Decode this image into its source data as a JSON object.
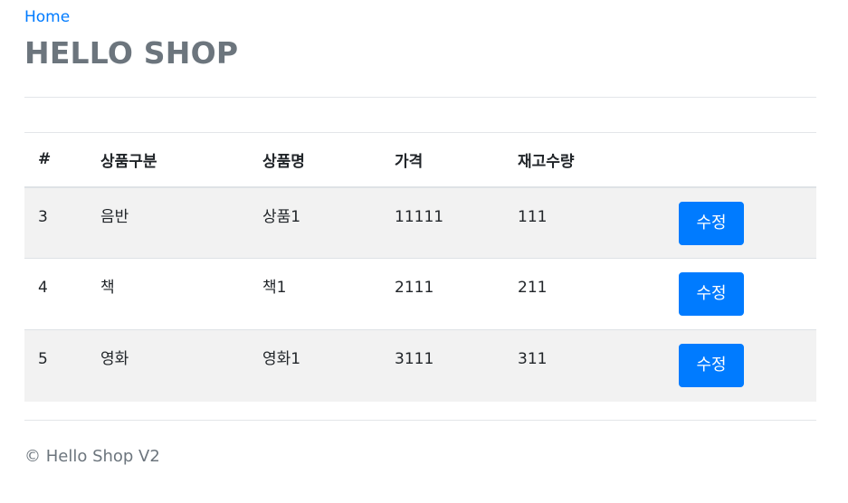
{
  "nav": {
    "home_label": "Home"
  },
  "header": {
    "title": "HELLO SHOP"
  },
  "table": {
    "columns": [
      "#",
      "상품구분",
      "상품명",
      "가격",
      "재고수량",
      ""
    ],
    "rows": [
      {
        "id": "3",
        "category": "음반",
        "name": "상품1",
        "price": "11111",
        "stock": "111",
        "action_label": "수정"
      },
      {
        "id": "4",
        "category": "책",
        "name": "책1",
        "price": "2111",
        "stock": "211",
        "action_label": "수정"
      },
      {
        "id": "5",
        "category": "영화",
        "name": "영화1",
        "price": "3111",
        "stock": "311",
        "action_label": "수정"
      }
    ]
  },
  "footer": {
    "text": "© Hello Shop V2"
  },
  "colors": {
    "link": "#007bff",
    "button": "#007bff",
    "title": "#6c757d",
    "stripe": "#f2f2f2"
  }
}
